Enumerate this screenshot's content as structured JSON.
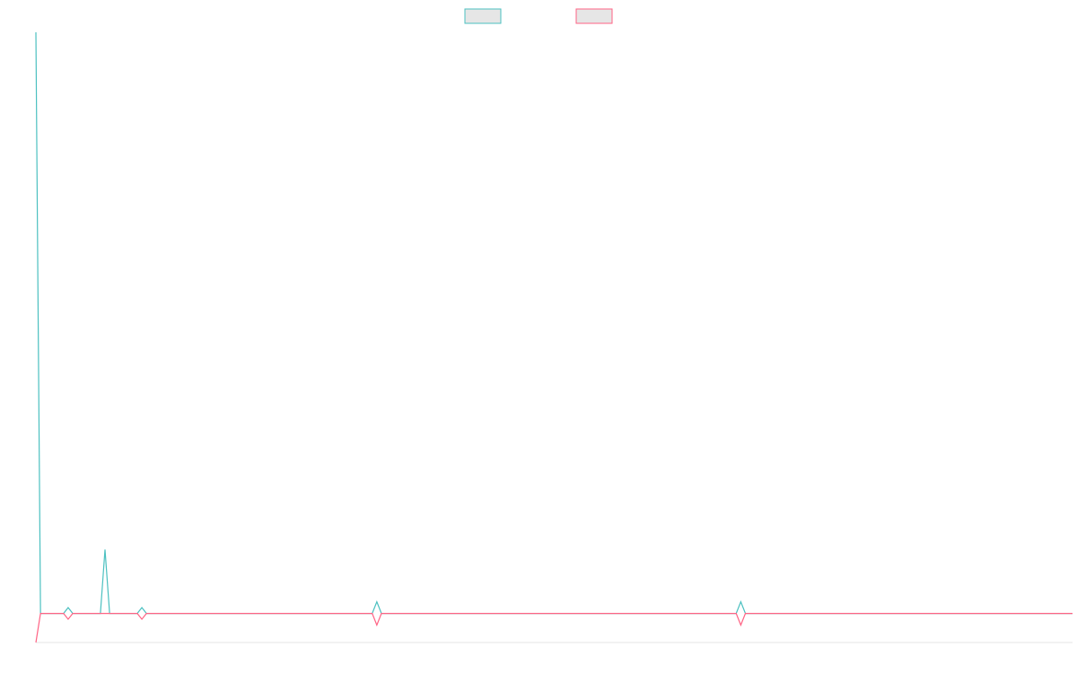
{
  "chart_data": {
    "type": "line",
    "x": [
      0,
      1,
      6,
      7,
      8,
      14,
      15,
      16,
      22,
      23,
      24,
      73,
      74,
      75,
      152,
      153,
      154,
      225
    ],
    "xlim": [
      0,
      225
    ],
    "ylim": [
      -5,
      100
    ],
    "series": [
      {
        "color": "#4bc0c0",
        "values": [
          100,
          0,
          0,
          1,
          0,
          0,
          11,
          0,
          0,
          1,
          0,
          0,
          2,
          0,
          0,
          2,
          0,
          0
        ]
      },
      {
        "color": "#ff6384",
        "values": [
          -5,
          0,
          0,
          -1,
          0,
          0,
          0,
          0,
          0,
          -1,
          0,
          0,
          -2,
          0,
          0,
          -2,
          0,
          0
        ]
      }
    ]
  }
}
